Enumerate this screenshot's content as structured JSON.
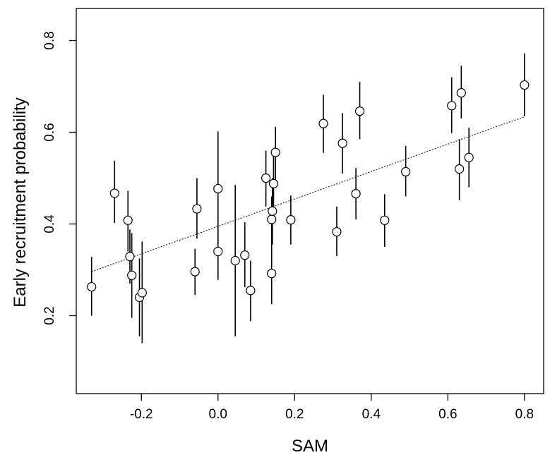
{
  "chart_data": {
    "type": "scatter",
    "title": "",
    "xlabel": "SAM",
    "ylabel": "Early recruitment probability",
    "xlim": [
      -0.37,
      0.85
    ],
    "ylim": [
      0.03,
      0.87
    ],
    "xticks": [
      -0.2,
      0.0,
      0.2,
      0.4,
      0.6,
      0.8
    ],
    "xtick_labels": [
      "-0.2",
      "0.0",
      "0.2",
      "0.4",
      "0.6",
      "0.8"
    ],
    "yticks": [
      0.2,
      0.4,
      0.6,
      0.8
    ],
    "ytick_labels": [
      "0.2",
      "0.4",
      "0.6",
      "0.8"
    ],
    "grid": false,
    "legend": "none",
    "trend_line": {
      "style": "dotted",
      "x": [
        -0.33,
        0.8
      ],
      "y": [
        0.296,
        0.634
      ]
    },
    "points": [
      {
        "x": -0.33,
        "y": 0.263,
        "lo": 0.2,
        "hi": 0.328
      },
      {
        "x": -0.27,
        "y": 0.467,
        "lo": 0.402,
        "hi": 0.538
      },
      {
        "x": -0.235,
        "y": 0.408,
        "lo": 0.34,
        "hi": 0.472
      },
      {
        "x": -0.23,
        "y": 0.329,
        "lo": 0.27,
        "hi": 0.388
      },
      {
        "x": -0.225,
        "y": 0.288,
        "lo": 0.195,
        "hi": 0.38
      },
      {
        "x": -0.205,
        "y": 0.24,
        "lo": 0.155,
        "hi": 0.325
      },
      {
        "x": -0.198,
        "y": 0.25,
        "lo": 0.14,
        "hi": 0.362
      },
      {
        "x": -0.06,
        "y": 0.296,
        "lo": 0.245,
        "hi": 0.346
      },
      {
        "x": -0.055,
        "y": 0.433,
        "lo": 0.368,
        "hi": 0.5
      },
      {
        "x": 0.0,
        "y": 0.477,
        "lo": 0.358,
        "hi": 0.602
      },
      {
        "x": 0.0,
        "y": 0.34,
        "lo": 0.278,
        "hi": 0.4
      },
      {
        "x": 0.045,
        "y": 0.32,
        "lo": 0.155,
        "hi": 0.485
      },
      {
        "x": 0.07,
        "y": 0.332,
        "lo": 0.262,
        "hi": 0.404
      },
      {
        "x": 0.085,
        "y": 0.255,
        "lo": 0.188,
        "hi": 0.32
      },
      {
        "x": 0.125,
        "y": 0.5,
        "lo": 0.438,
        "hi": 0.56
      },
      {
        "x": 0.14,
        "y": 0.41,
        "lo": 0.36,
        "hi": 0.46
      },
      {
        "x": 0.142,
        "y": 0.428,
        "lo": 0.355,
        "hi": 0.5
      },
      {
        "x": 0.145,
        "y": 0.488,
        "lo": 0.415,
        "hi": 0.555
      },
      {
        "x": 0.15,
        "y": 0.556,
        "lo": 0.495,
        "hi": 0.612
      },
      {
        "x": 0.14,
        "y": 0.292,
        "lo": 0.225,
        "hi": 0.365
      },
      {
        "x": 0.19,
        "y": 0.409,
        "lo": 0.355,
        "hi": 0.462
      },
      {
        "x": 0.275,
        "y": 0.619,
        "lo": 0.555,
        "hi": 0.682
      },
      {
        "x": 0.31,
        "y": 0.383,
        "lo": 0.33,
        "hi": 0.438
      },
      {
        "x": 0.325,
        "y": 0.576,
        "lo": 0.51,
        "hi": 0.642
      },
      {
        "x": 0.36,
        "y": 0.466,
        "lo": 0.41,
        "hi": 0.522
      },
      {
        "x": 0.37,
        "y": 0.646,
        "lo": 0.585,
        "hi": 0.71
      },
      {
        "x": 0.435,
        "y": 0.408,
        "lo": 0.35,
        "hi": 0.465
      },
      {
        "x": 0.49,
        "y": 0.514,
        "lo": 0.46,
        "hi": 0.57
      },
      {
        "x": 0.61,
        "y": 0.658,
        "lo": 0.598,
        "hi": 0.72
      },
      {
        "x": 0.63,
        "y": 0.52,
        "lo": 0.452,
        "hi": 0.585
      },
      {
        "x": 0.635,
        "y": 0.686,
        "lo": 0.63,
        "hi": 0.745
      },
      {
        "x": 0.655,
        "y": 0.545,
        "lo": 0.48,
        "hi": 0.61
      },
      {
        "x": 0.8,
        "y": 0.703,
        "lo": 0.635,
        "hi": 0.772
      }
    ]
  }
}
